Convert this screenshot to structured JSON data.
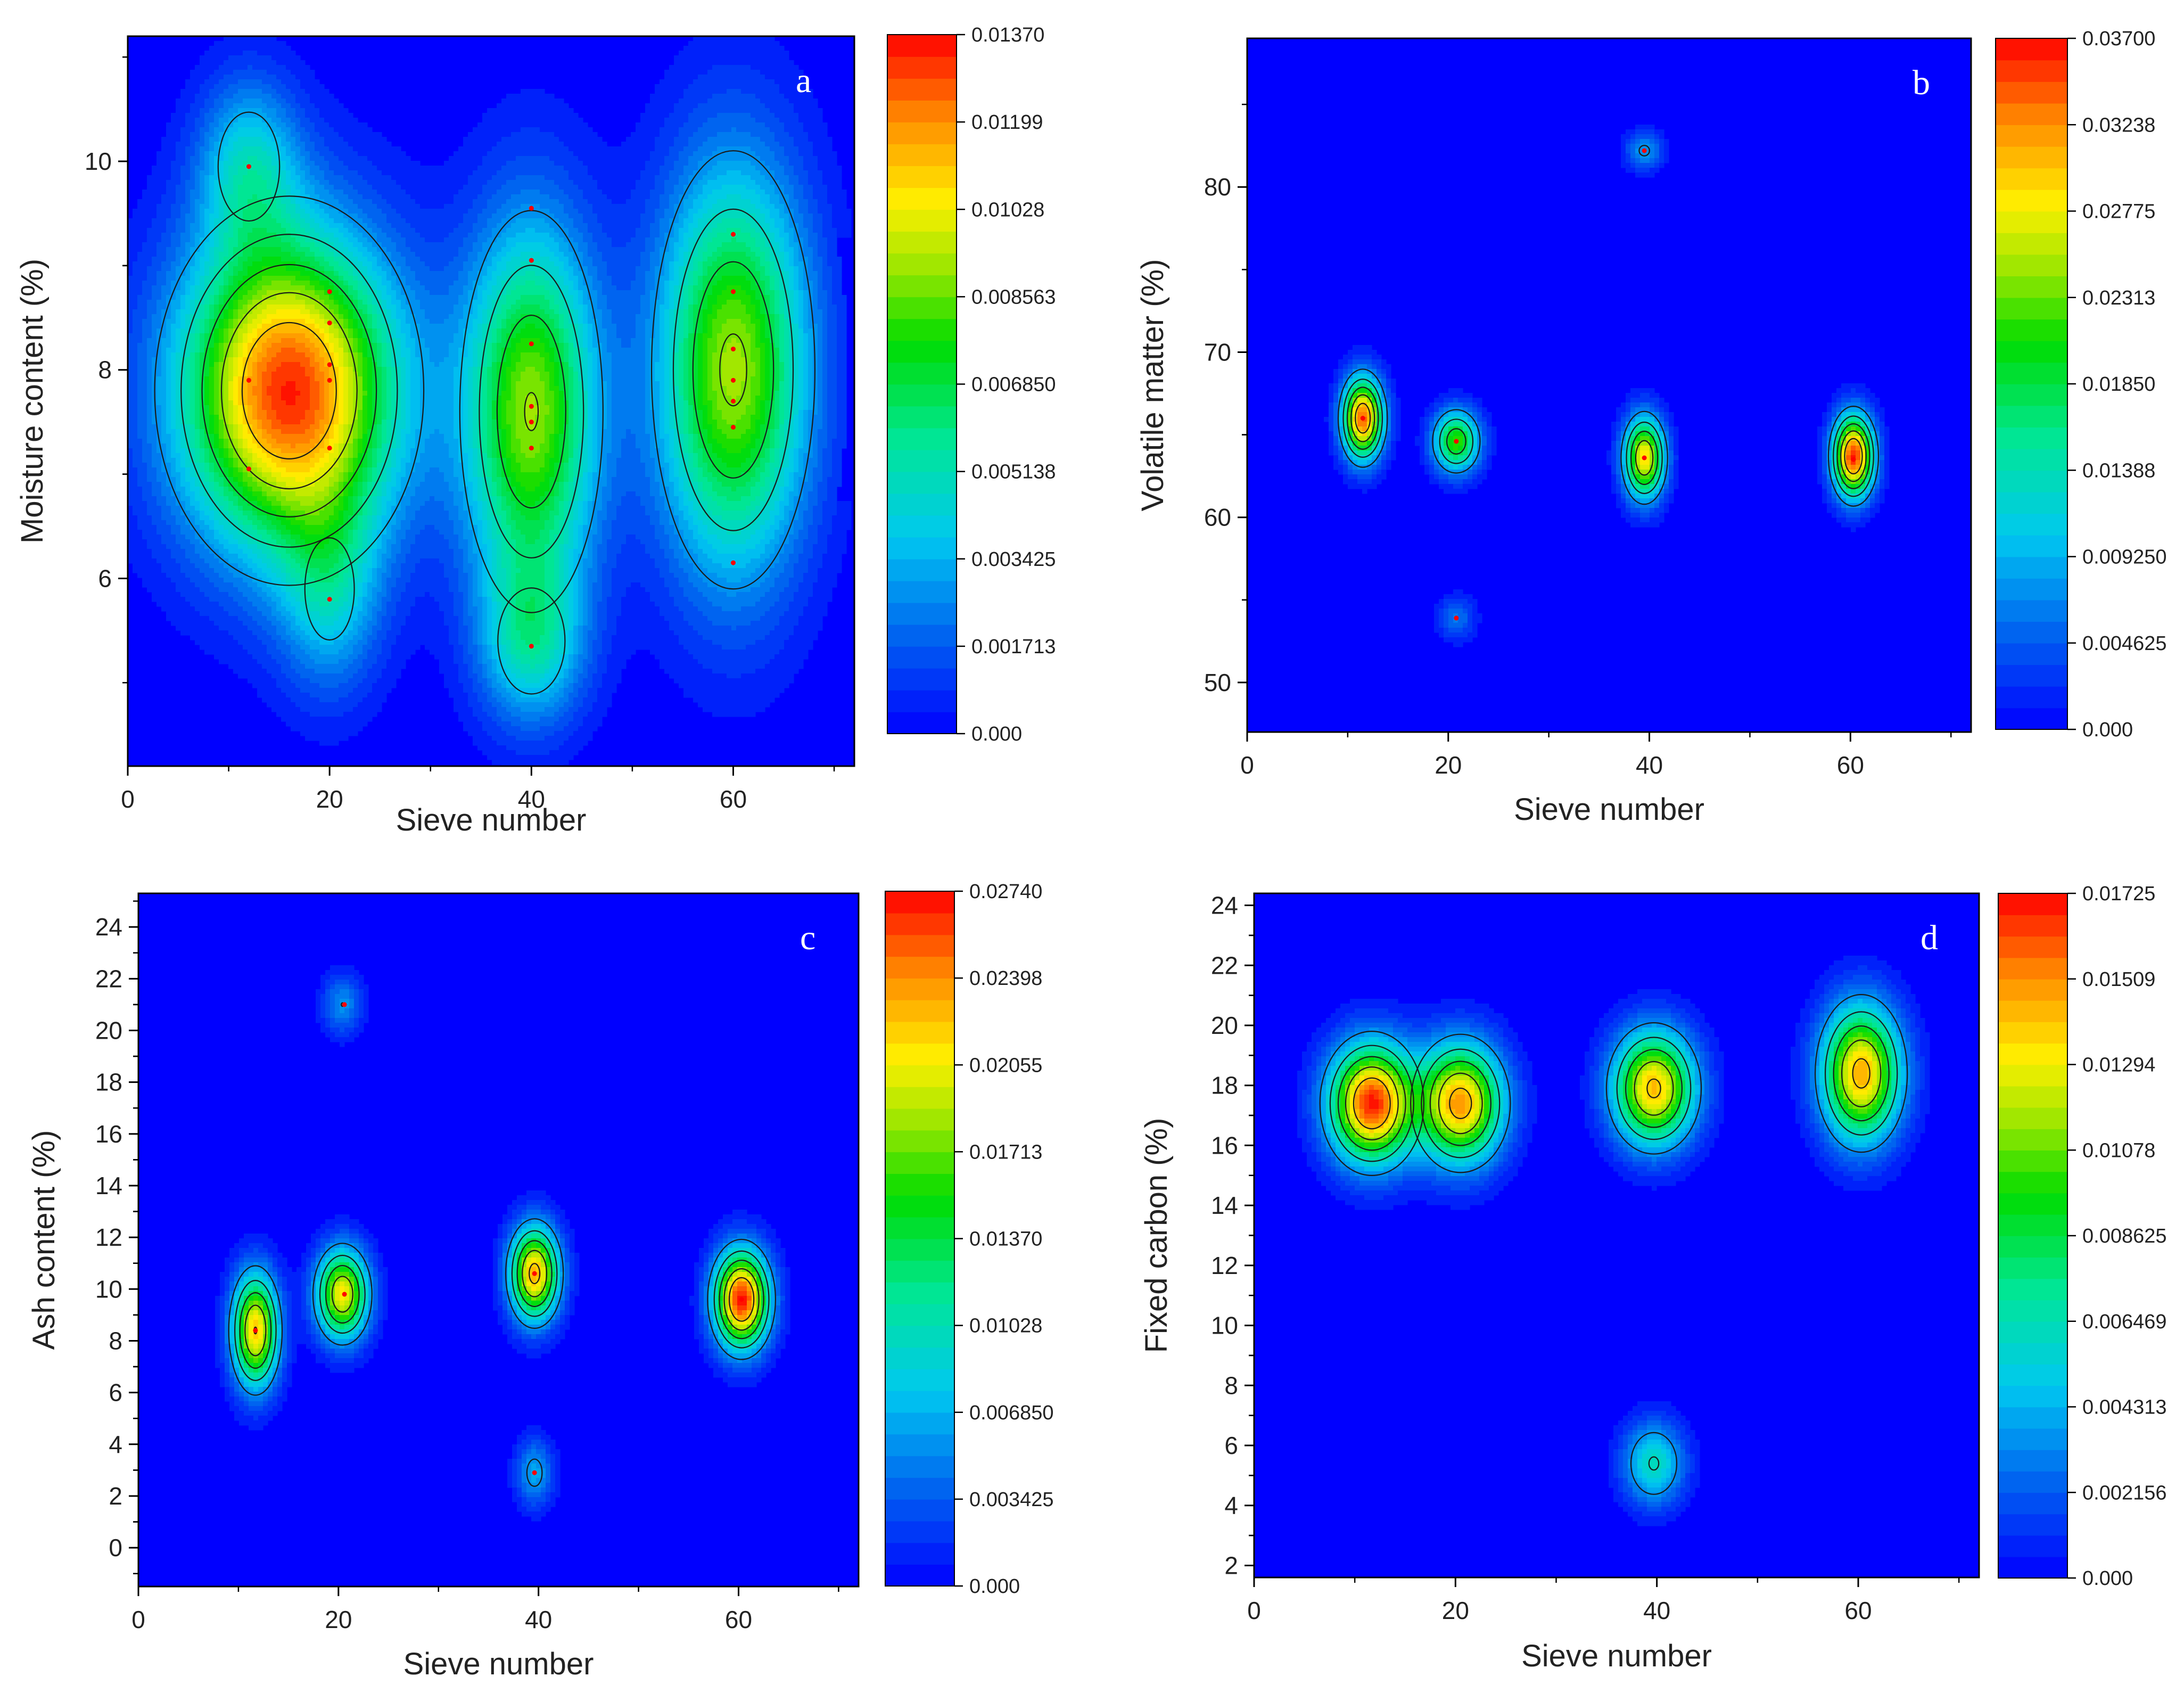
{
  "figure": {
    "description_panels": [
      "a",
      "b",
      "c",
      "d"
    ]
  },
  "chart_data": [
    {
      "type": "heatmap",
      "panel_label": "a",
      "title": "",
      "xlabel": "Sieve number",
      "ylabel": "Moisture content (%)",
      "xlim": [
        0,
        72
      ],
      "ylim": [
        4.2,
        11.2
      ],
      "x_ticks": [
        0,
        20,
        40,
        60
      ],
      "x_tick_labels": [
        "0",
        "20",
        "40",
        "60"
      ],
      "y_ticks": [
        6,
        8,
        10
      ],
      "y_tick_labels": [
        "6",
        "8",
        "10"
      ],
      "colorbar": {
        "min": 0,
        "max": 0.0137,
        "tick_labels": [
          "0.01370",
          "0.01199",
          "0.01028",
          "0.008563",
          "0.006850",
          "0.005138",
          "0.003425",
          "0.001713",
          "0.000"
        ]
      },
      "hotspots": [
        {
          "x": 16,
          "y": 7.8,
          "sx": 7.5,
          "sy": 1.05,
          "amp": 0.0133
        },
        {
          "x": 12,
          "y": 9.95,
          "sx": 3.5,
          "sy": 0.6,
          "amp": 0.004
        },
        {
          "x": 20,
          "y": 5.9,
          "sx": 3.5,
          "sy": 0.7,
          "amp": 0.0035
        },
        {
          "x": 40,
          "y": 7.6,
          "sx": 4.6,
          "sy": 1.25,
          "amp": 0.009
        },
        {
          "x": 40,
          "y": 5.4,
          "sx": 3.6,
          "sy": 0.55,
          "amp": 0.0042
        },
        {
          "x": 60,
          "y": 8.0,
          "sx": 5.2,
          "sy": 1.35,
          "amp": 0.0092
        }
      ],
      "points": [
        {
          "x": 12,
          "y": 9.95
        },
        {
          "x": 12,
          "y": 7.9
        },
        {
          "x": 12,
          "y": 7.05
        },
        {
          "x": 20,
          "y": 8.75
        },
        {
          "x": 20,
          "y": 8.45
        },
        {
          "x": 20,
          "y": 8.05
        },
        {
          "x": 20,
          "y": 7.9
        },
        {
          "x": 20,
          "y": 7.25
        },
        {
          "x": 20,
          "y": 5.8
        },
        {
          "x": 40,
          "y": 9.55
        },
        {
          "x": 40,
          "y": 9.05
        },
        {
          "x": 40,
          "y": 8.25
        },
        {
          "x": 40,
          "y": 7.65
        },
        {
          "x": 40,
          "y": 7.5
        },
        {
          "x": 40,
          "y": 7.25
        },
        {
          "x": 40,
          "y": 5.35
        },
        {
          "x": 60,
          "y": 9.3
        },
        {
          "x": 60,
          "y": 8.75
        },
        {
          "x": 60,
          "y": 8.2
        },
        {
          "x": 60,
          "y": 7.9
        },
        {
          "x": 60,
          "y": 7.7
        },
        {
          "x": 60,
          "y": 7.45
        },
        {
          "x": 60,
          "y": 6.15
        }
      ]
    },
    {
      "type": "heatmap",
      "panel_label": "b",
      "title": "",
      "xlabel": "Sieve number",
      "ylabel": "Volatile matter (%)",
      "xlim": [
        0,
        72
      ],
      "ylim": [
        47,
        89
      ],
      "x_ticks": [
        0,
        20,
        40,
        60
      ],
      "x_tick_labels": [
        "0",
        "20",
        "40",
        "60"
      ],
      "y_ticks": [
        50,
        60,
        70,
        80
      ],
      "y_tick_labels": [
        "50",
        "60",
        "70",
        "80"
      ],
      "colorbar": {
        "min": 0,
        "max": 0.037,
        "tick_labels": [
          "0.03700",
          "0.03238",
          "0.02775",
          "0.02313",
          "0.01850",
          "0.01388",
          "0.009250",
          "0.004625",
          "0.000"
        ]
      },
      "hotspots": [
        {
          "x": 11.5,
          "y": 66.0,
          "sx": 1.4,
          "sy": 1.7,
          "amp": 0.034
        },
        {
          "x": 20.8,
          "y": 64.6,
          "sx": 1.6,
          "sy": 1.3,
          "amp": 0.022
        },
        {
          "x": 20.8,
          "y": 53.9,
          "sx": 1.3,
          "sy": 0.9,
          "amp": 0.006
        },
        {
          "x": 39.5,
          "y": 82.2,
          "sx": 1.3,
          "sy": 0.8,
          "amp": 0.008
        },
        {
          "x": 39.5,
          "y": 63.6,
          "sx": 1.4,
          "sy": 1.7,
          "amp": 0.029
        },
        {
          "x": 60.3,
          "y": 63.7,
          "sx": 1.4,
          "sy": 1.7,
          "amp": 0.036
        }
      ],
      "points": [
        {
          "x": 11.5,
          "y": 66.0
        },
        {
          "x": 20.8,
          "y": 64.6
        },
        {
          "x": 20.8,
          "y": 53.9
        },
        {
          "x": 39.5,
          "y": 82.2
        },
        {
          "x": 39.5,
          "y": 63.6
        },
        {
          "x": 60.3,
          "y": 63.5
        }
      ]
    },
    {
      "type": "heatmap",
      "panel_label": "c",
      "title": "",
      "xlabel": "Sieve number",
      "ylabel": "Ash content (%)",
      "xlim": [
        0,
        72
      ],
      "ylim": [
        -1.5,
        25.3
      ],
      "x_ticks": [
        0,
        20,
        40,
        60
      ],
      "x_tick_labels": [
        "0",
        "20",
        "40",
        "60"
      ],
      "y_ticks": [
        0,
        2,
        4,
        6,
        8,
        10,
        12,
        14,
        16,
        18,
        20,
        22,
        24
      ],
      "y_tick_labels": [
        "0",
        "2",
        "4",
        "6",
        "8",
        "10",
        "12",
        "14",
        "16",
        "18",
        "20",
        "22",
        "24"
      ],
      "colorbar": {
        "min": 0,
        "max": 0.0274,
        "tick_labels": [
          "0.02740",
          "0.02398",
          "0.02055",
          "0.01713",
          "0.01370",
          "0.01028",
          "0.006850",
          "0.003425",
          "0.000"
        ]
      },
      "hotspots": [
        {
          "x": 11.7,
          "y": 8.4,
          "sx": 1.6,
          "sy": 1.5,
          "amp": 0.022
        },
        {
          "x": 20.4,
          "y": 9.8,
          "sx": 1.8,
          "sy": 1.2,
          "amp": 0.021
        },
        {
          "x": 20.4,
          "y": 21.0,
          "sx": 1.4,
          "sy": 0.8,
          "amp": 0.0055
        },
        {
          "x": 39.6,
          "y": 10.6,
          "sx": 1.7,
          "sy": 1.25,
          "amp": 0.023
        },
        {
          "x": 39.6,
          "y": 2.9,
          "sx": 1.3,
          "sy": 0.9,
          "amp": 0.0065
        },
        {
          "x": 60.3,
          "y": 9.6,
          "sx": 1.9,
          "sy": 1.3,
          "amp": 0.027
        }
      ],
      "points": [
        {
          "x": 11.7,
          "y": 8.4
        },
        {
          "x": 20.6,
          "y": 9.8
        },
        {
          "x": 20.6,
          "y": 21.0
        },
        {
          "x": 39.6,
          "y": 10.6
        },
        {
          "x": 39.6,
          "y": 2.9
        },
        {
          "x": 60.3,
          "y": 9.6
        }
      ]
    },
    {
      "type": "heatmap",
      "panel_label": "d",
      "title": "",
      "xlabel": "Sieve number",
      "ylabel": "Fixed carbon (%)",
      "xlim": [
        0,
        72
      ],
      "ylim": [
        1.6,
        24.4
      ],
      "x_ticks": [
        0,
        20,
        40,
        60
      ],
      "x_tick_labels": [
        "0",
        "20",
        "40",
        "60"
      ],
      "y_ticks": [
        2,
        4,
        6,
        8,
        10,
        12,
        14,
        16,
        18,
        20,
        22,
        24
      ],
      "y_tick_labels": [
        "2",
        "4",
        "6",
        "8",
        "10",
        "12",
        "14",
        "16",
        "18",
        "20",
        "22",
        "24"
      ],
      "colorbar": {
        "min": 0,
        "max": 0.01725,
        "tick_labels": [
          "0.01725",
          "0.01509",
          "0.01294",
          "0.01078",
          "0.008625",
          "0.006469",
          "0.004313",
          "0.002156",
          "0.000"
        ]
      },
      "hotspots": [
        {
          "x": 11.7,
          "y": 17.4,
          "sx": 2.9,
          "sy": 1.35,
          "amp": 0.0168
        },
        {
          "x": 20.5,
          "y": 17.4,
          "sx": 2.9,
          "sy": 1.35,
          "amp": 0.0148
        },
        {
          "x": 39.7,
          "y": 17.9,
          "sx": 2.8,
          "sy": 1.3,
          "amp": 0.0142
        },
        {
          "x": 39.7,
          "y": 5.4,
          "sx": 2.1,
          "sy": 0.95,
          "amp": 0.0062
        },
        {
          "x": 60.3,
          "y": 18.4,
          "sx": 2.7,
          "sy": 1.55,
          "amp": 0.0145
        }
      ],
      "points": []
    }
  ]
}
